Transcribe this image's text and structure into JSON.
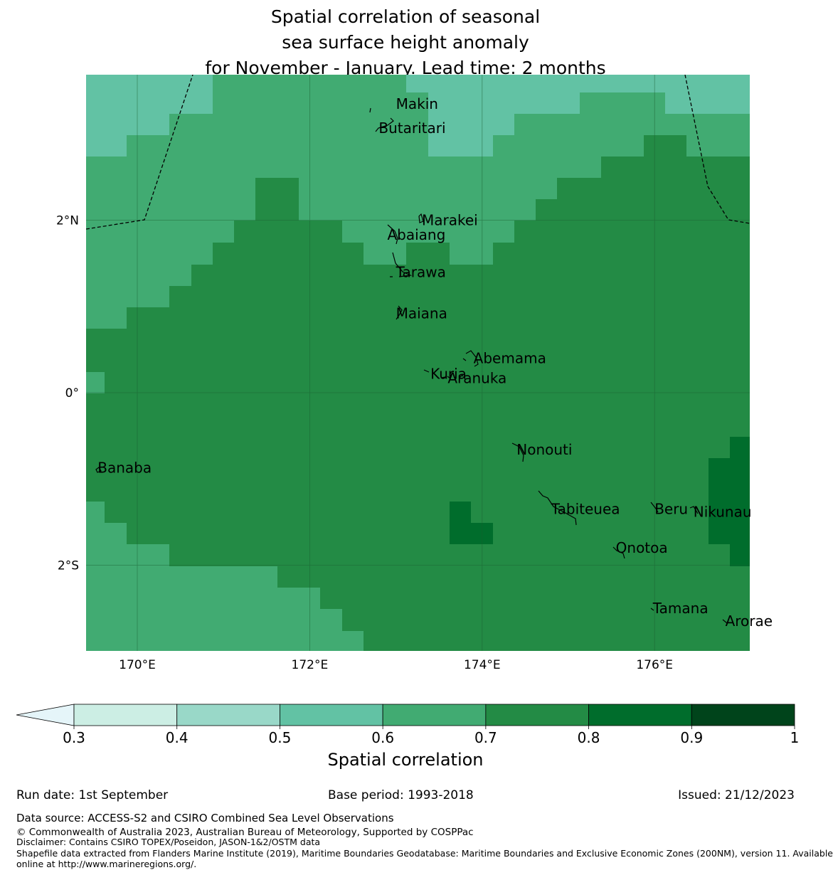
{
  "title": {
    "line1": "Spatial correlation of seasonal",
    "line2": "sea surface height anomaly",
    "line3": "for November - January. Lead time: 2 months"
  },
  "map": {
    "lon_range": [
      169.4,
      177.1
    ],
    "lat_range": [
      -3.0,
      3.7
    ],
    "x_ticks": [
      {
        "lon": 170,
        "label": "170°E"
      },
      {
        "lon": 172,
        "label": "172°E"
      },
      {
        "lon": 174,
        "label": "174°E"
      },
      {
        "lon": 176,
        "label": "176°E"
      }
    ],
    "y_ticks": [
      {
        "lat": 2,
        "label": "2°N"
      },
      {
        "lat": 0,
        "label": "0°"
      },
      {
        "lat": -2,
        "label": "2°S"
      }
    ],
    "colors": {
      "0.5-0.6": "#62c2a4",
      "0.6-0.7": "#41ab72",
      "0.7-0.8": "#238b45",
      "0.8-0.9": "#006d2c",
      "grid": "#1a5c30"
    },
    "islands": [
      {
        "name": "Makin",
        "lon": 173.0,
        "lat": 3.35
      },
      {
        "name": "Butaritari",
        "lon": 172.8,
        "lat": 3.07
      },
      {
        "name": "Marakei",
        "lon": 173.3,
        "lat": 2.0
      },
      {
        "name": "Abaiang",
        "lon": 172.9,
        "lat": 1.83
      },
      {
        "name": "Tarawa",
        "lon": 173.0,
        "lat": 1.4
      },
      {
        "name": "Maiana",
        "lon": 173.0,
        "lat": 0.92
      },
      {
        "name": "Abemama",
        "lon": 173.9,
        "lat": 0.4
      },
      {
        "name": "Kuria",
        "lon": 173.4,
        "lat": 0.22
      },
      {
        "name": "Aranuka",
        "lon": 173.6,
        "lat": 0.17
      },
      {
        "name": "Nonouti",
        "lon": 174.4,
        "lat": -0.66
      },
      {
        "name": "Banaba",
        "lon": 169.54,
        "lat": -0.87
      },
      {
        "name": "Tabiteuea",
        "lon": 174.8,
        "lat": -1.35
      },
      {
        "name": "Beru",
        "lon": 176.0,
        "lat": -1.35
      },
      {
        "name": "Nikunau",
        "lon": 176.45,
        "lat": -1.38
      },
      {
        "name": "Onotoa",
        "lon": 175.55,
        "lat": -1.8
      },
      {
        "name": "Tamana",
        "lon": 175.98,
        "lat": -2.5
      },
      {
        "name": "Arorae",
        "lon": 176.82,
        "lat": -2.65
      }
    ]
  },
  "colorbar": {
    "label": "Spatial correlation",
    "ticks": [
      "0.3",
      "0.4",
      "0.5",
      "0.6",
      "0.7",
      "0.8",
      "0.9",
      "1"
    ],
    "colors": [
      "#cceee4",
      "#99d8c8",
      "#62c2a4",
      "#41ab72",
      "#238b45",
      "#006d2c",
      "#00441b"
    ],
    "extend_color": "#e5f5f9"
  },
  "footer": {
    "run_date": "Run date: 1st September",
    "base_period": "Base period: 1993-2018",
    "issued": "Issued: 21/12/2023",
    "data_source": "Data source: ACCESS-S2 and CSIRO Combined Sea Level Observations",
    "copyright": "© Commonwealth of Australia 2023, Australian Bureau of Meteorology, Supported by COSPPac",
    "disclaimer": "Disclaimer: Contains CSIRO TOPEX/Poseidon, JASON-1&2/OSTM data",
    "shapefile_line1": "Shapefile data extracted from Flanders Marine Institute (2019), Maritime Boundaries Geodatabase: Maritime Boundaries and Exclusive Economic Zones (200NM), version 11. Available",
    "shapefile_line2": "online at http://www.marineregions.org/."
  }
}
